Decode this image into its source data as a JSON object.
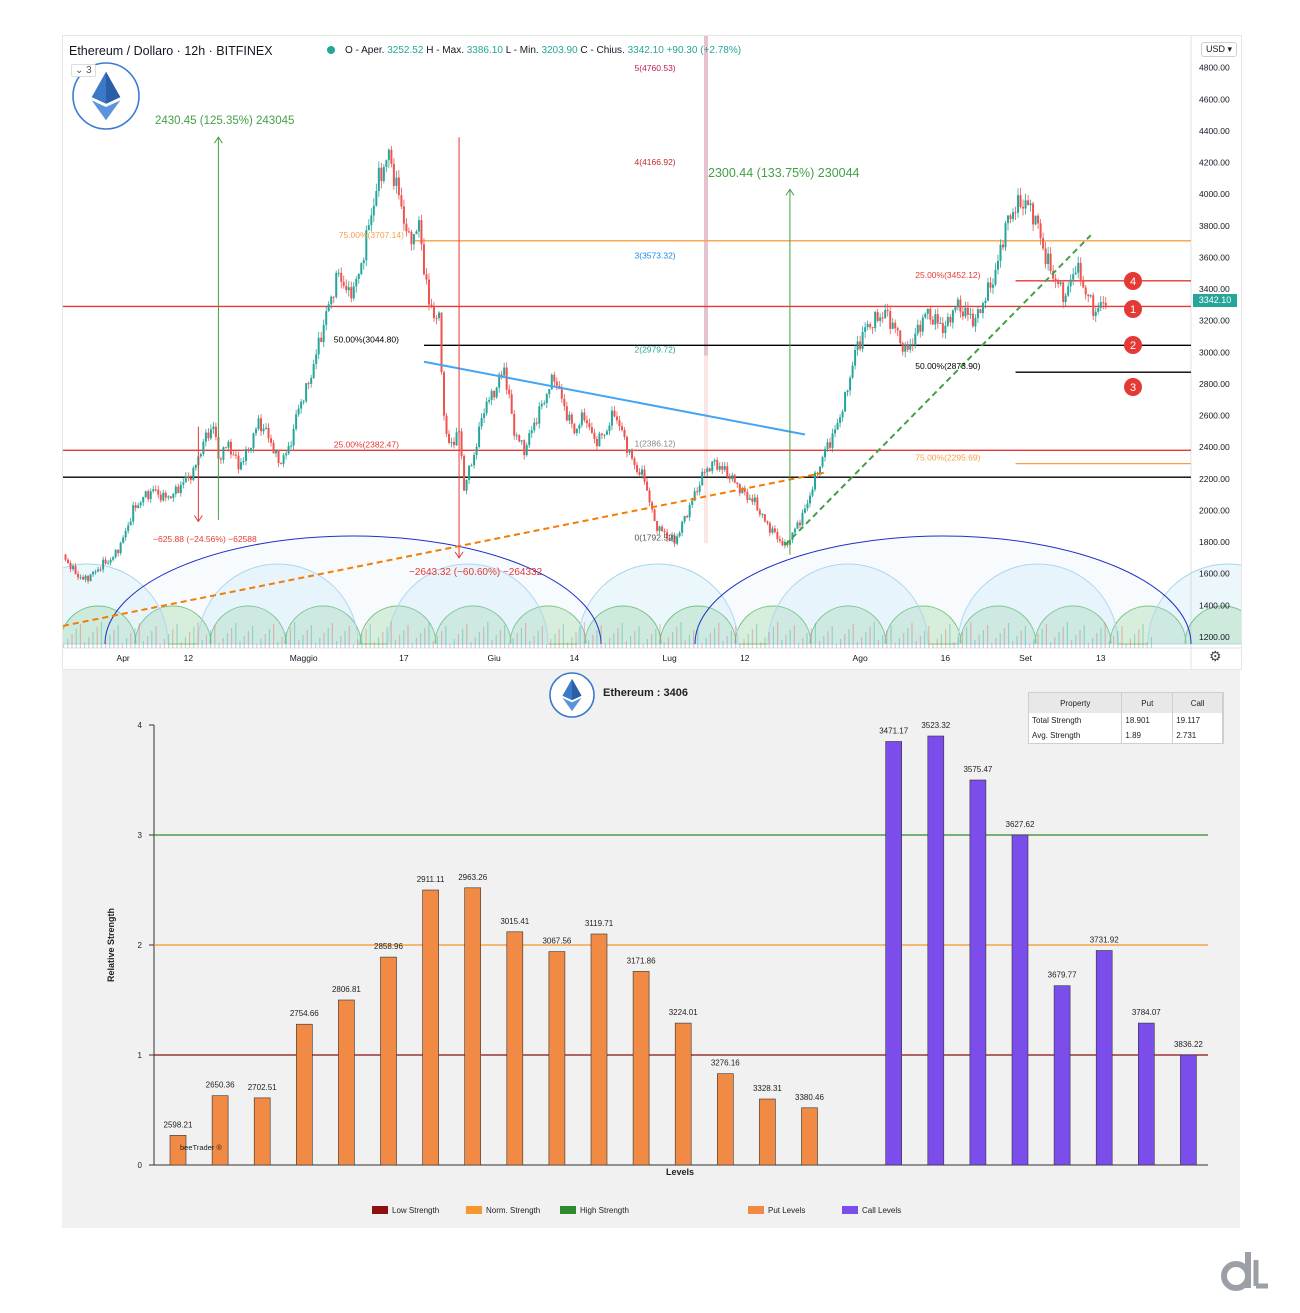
{
  "header": {
    "title": "Ethereum / Dollaro · 12h · BITFINEX",
    "ohlc_prefix": "O - Aper.",
    "open": "3252.52",
    "high_label": "H - Max.",
    "high": "3386.10",
    "low_label": "L - Min.",
    "low": "3203.90",
    "close_label": "C - Chius.",
    "close": "3342.10",
    "change": "+90.30 (+2.78%)",
    "currency_selector": "USD ▾",
    "collapse_indicator": "⌄ 3",
    "current_price_tag": "3342.10"
  },
  "chart_data": [
    {
      "type": "candlestick",
      "title": "Ethereum / Dollaro · 12h · BITFINEX",
      "y_axis_ticks": [
        1200,
        1400,
        1600,
        1800,
        2000,
        2200,
        2400,
        2600,
        2800,
        3000,
        3200,
        3400,
        3600,
        3800,
        4000,
        4200,
        4400,
        4600,
        4800
      ],
      "y_tick_labels": [
        "1200.00",
        "1400.00",
        "1600.00",
        "1800.00",
        "2000.00",
        "2200.00",
        "2400.00",
        "2600.00",
        "2800.00",
        "3000.00",
        "3200.00",
        "3400.00",
        "3600.00",
        "3800.00",
        "4000.00",
        "4200.00",
        "4400.00",
        "4600.00",
        "4800.00"
      ],
      "y_range": [
        1130,
        5000
      ],
      "x_range": [
        0,
        225
      ],
      "x_tick_labels": [
        {
          "label": "Apr",
          "x": 12
        },
        {
          "label": "12",
          "x": 25
        },
        {
          "label": "Maggio",
          "x": 48
        },
        {
          "label": "17",
          "x": 68
        },
        {
          "label": "Giu",
          "x": 86
        },
        {
          "label": "14",
          "x": 102
        },
        {
          "label": "Lug",
          "x": 121
        },
        {
          "label": "12",
          "x": 136
        },
        {
          "label": "Ago",
          "x": 159
        },
        {
          "label": "16",
          "x": 176
        },
        {
          "label": "Set",
          "x": 192
        },
        {
          "label": "13",
          "x": 207
        }
      ],
      "price_path": [
        [
          0,
          1720
        ],
        [
          2,
          1620
        ],
        [
          4,
          1560
        ],
        [
          6,
          1600
        ],
        [
          8,
          1660
        ],
        [
          10,
          1700
        ],
        [
          12,
          1820
        ],
        [
          14,
          2000
        ],
        [
          16,
          2080
        ],
        [
          18,
          2130
        ],
        [
          20,
          2080
        ],
        [
          22,
          2100
        ],
        [
          24,
          2180
        ],
        [
          26,
          2240
        ],
        [
          28,
          2430
        ],
        [
          30,
          2540
        ],
        [
          31,
          2330
        ],
        [
          33,
          2420
        ],
        [
          35,
          2280
        ],
        [
          37,
          2380
        ],
        [
          39,
          2560
        ],
        [
          41,
          2470
        ],
        [
          43,
          2300
        ],
        [
          45,
          2380
        ],
        [
          47,
          2650
        ],
        [
          49,
          2800
        ],
        [
          51,
          3050
        ],
        [
          53,
          3300
        ],
        [
          55,
          3500
        ],
        [
          57,
          3360
        ],
        [
          59,
          3480
        ],
        [
          61,
          3800
        ],
        [
          63,
          4100
        ],
        [
          65,
          4250
        ],
        [
          67,
          3990
        ],
        [
          69,
          3700
        ],
        [
          71,
          3800
        ],
        [
          73,
          3300
        ],
        [
          75,
          3200
        ],
        [
          76,
          2600
        ],
        [
          77,
          2400
        ],
        [
          79,
          2500
        ],
        [
          80,
          2150
        ],
        [
          82,
          2350
        ],
        [
          84,
          2650
        ],
        [
          86,
          2750
        ],
        [
          88,
          2900
        ],
        [
          90,
          2500
        ],
        [
          92,
          2380
        ],
        [
          94,
          2550
        ],
        [
          96,
          2700
        ],
        [
          98,
          2850
        ],
        [
          100,
          2650
        ],
        [
          102,
          2500
        ],
        [
          104,
          2600
        ],
        [
          106,
          2440
        ],
        [
          108,
          2480
        ],
        [
          110,
          2620
        ],
        [
          112,
          2450
        ],
        [
          114,
          2280
        ],
        [
          116,
          2200
        ],
        [
          118,
          1920
        ],
        [
          120,
          1850
        ],
        [
          122,
          1800
        ],
        [
          124,
          1950
        ],
        [
          126,
          2100
        ],
        [
          128,
          2250
        ],
        [
          130,
          2300
        ],
        [
          132,
          2250
        ],
        [
          134,
          2180
        ],
        [
          136,
          2100
        ],
        [
          138,
          2050
        ],
        [
          140,
          1930
        ],
        [
          142,
          1850
        ],
        [
          144,
          1770
        ],
        [
          146,
          1880
        ],
        [
          148,
          2000
        ],
        [
          150,
          2200
        ],
        [
          152,
          2380
        ],
        [
          154,
          2500
        ],
        [
          156,
          2700
        ],
        [
          158,
          3000
        ],
        [
          160,
          3150
        ],
        [
          162,
          3200
        ],
        [
          164,
          3250
        ],
        [
          166,
          3150
        ],
        [
          168,
          3000
        ],
        [
          170,
          3100
        ],
        [
          172,
          3250
        ],
        [
          174,
          3200
        ],
        [
          176,
          3150
        ],
        [
          178,
          3300
        ],
        [
          180,
          3250
        ],
        [
          182,
          3200
        ],
        [
          184,
          3350
        ],
        [
          186,
          3500
        ],
        [
          188,
          3800
        ],
        [
          190,
          3920
        ],
        [
          192,
          3950
        ],
        [
          194,
          3850
        ],
        [
          196,
          3600
        ],
        [
          198,
          3450
        ],
        [
          200,
          3350
        ],
        [
          202,
          3550
        ],
        [
          204,
          3380
        ],
        [
          206,
          3250
        ],
        [
          208,
          3342
        ]
      ]
    }
  ],
  "overlays": {
    "horizontal_lines": [
      {
        "price": 3290,
        "color": "#e53935",
        "x_from": 0,
        "x_to": 225
      },
      {
        "price": 2380,
        "color": "#e53935",
        "x_from": 0,
        "x_to": 225
      },
      {
        "price": 2210,
        "color": "#000000",
        "x_from": 0,
        "x_to": 225
      },
      {
        "price": 3044,
        "color": "#000000",
        "x_from": 72,
        "x_to": 225
      },
      {
        "price": 2874,
        "color": "#000000",
        "x_from": 190,
        "x_to": 225
      },
      {
        "price": 3452,
        "color": "#e53935",
        "x_from": 190,
        "x_to": 225
      },
      {
        "price": 3705,
        "color": "#f5a04a",
        "x_from": 70,
        "x_to": 225
      },
      {
        "price": 2296,
        "color": "#f5a04a",
        "x_from": 190,
        "x_to": 225
      }
    ],
    "level_labels": [
      {
        "text": "75.00%(3707.14)",
        "price": 3705,
        "x": 55,
        "color": "#f5a04a"
      },
      {
        "text": "50.00%(3044.80)",
        "price": 3044,
        "x": 54,
        "color": "#000000"
      },
      {
        "text": "25.00%(2382.47)",
        "price": 2380,
        "x": 54,
        "color": "#e53935"
      },
      {
        "text": "25.00%(3452.12)",
        "price": 3452,
        "x": 170,
        "color": "#e53935"
      },
      {
        "text": "50.00%(2873.90)",
        "price": 2874,
        "x": 170,
        "color": "#000000"
      },
      {
        "text": "75.00%(2295.69)",
        "price": 2296,
        "x": 170,
        "color": "#f5a04a"
      },
      {
        "text": "5(4760.53)",
        "price": 4760,
        "x": 114,
        "color": "#c2185b"
      },
      {
        "text": "4(4166.92)",
        "price": 4166,
        "x": 114,
        "color": "#c62828"
      },
      {
        "text": "3(3573.32)",
        "price": 3573,
        "x": 114,
        "color": "#1e88e5"
      },
      {
        "text": "2(2979.72)",
        "price": 2979,
        "x": 114,
        "color": "#26a69a"
      },
      {
        "text": "1(2386.12)",
        "price": 2386,
        "x": 114,
        "color": "#888888"
      },
      {
        "text": "0(1792.52)",
        "price": 1792,
        "x": 114,
        "color": "#555555"
      }
    ],
    "measure_texts": [
      {
        "text": "2430.45 (125.35%) 243045",
        "color": "#43a047"
      },
      {
        "text": "2300.44 (133.75%) 230044",
        "color": "#43a047"
      },
      {
        "text": "−625.88 (−24.56%) −62588",
        "color": "#e53935"
      },
      {
        "text": "−2643.32 (−60.60%) −264332",
        "color": "#e53935"
      }
    ],
    "badges": [
      "1",
      "2",
      "3",
      "4"
    ],
    "measure_arrows": [
      {
        "x": 31,
        "from": 1940,
        "to": 4360,
        "color": "#43a047"
      },
      {
        "x": 27,
        "from": 2530,
        "to": 1930,
        "color": "#e53935"
      },
      {
        "x": 79,
        "from": 4360,
        "to": 1700,
        "color": "#e53935"
      },
      {
        "x": 145,
        "from": 1720,
        "to": 4030,
        "color": "#43a047"
      }
    ],
    "trend_lines": [
      {
        "p1": [
          72,
          2940
        ],
        "p2": [
          148,
          2480
        ],
        "color": "#42a5f5",
        "dash": false
      },
      {
        "p1": [
          0,
          1270
        ],
        "p2": [
          152,
          2240
        ],
        "color": "#f57c00",
        "dash": true
      },
      {
        "p1": [
          144,
          1780
        ],
        "p2": [
          205,
          3740
        ],
        "color": "#43a047",
        "dash": true
      }
    ]
  },
  "bottom_chart": {
    "title": "Ethereum : 3406",
    "ylabel": "Relative Strength",
    "xlabel": "Levels",
    "watermark_text": "beeTrader ®",
    "table": {
      "headers": [
        "Property",
        "Put",
        "Call"
      ],
      "rows": [
        [
          "Total Strength",
          "18.901",
          "19.117"
        ],
        [
          "Avg. Strength",
          "1.89",
          "2.731"
        ]
      ]
    },
    "legend": [
      {
        "label": "Low Strength",
        "color": "#8b1010"
      },
      {
        "label": "Norm. Strength",
        "color": "#f5962e"
      },
      {
        "label": "High Strength",
        "color": "#2e8b2e"
      },
      {
        "label": "Put Levels",
        "color": "#f08a44"
      },
      {
        "label": "Call Levels",
        "color": "#7b4dea"
      }
    ]
  },
  "bar_chart_data": {
    "type": "bar",
    "title": "Ethereum : 3406",
    "xlabel": "Levels",
    "ylabel": "Relative Strength",
    "ylim": [
      0,
      4
    ],
    "y_ticks": [
      "0",
      "1",
      "2",
      "3",
      "4"
    ],
    "threshold_lines": [
      {
        "name": "Low Strength",
        "value": 1,
        "color": "#8b1010"
      },
      {
        "name": "Norm. Strength",
        "value": 2,
        "color": "#f5962e"
      },
      {
        "name": "High Strength",
        "value": 3,
        "color": "#2e8b2e"
      }
    ],
    "series": [
      {
        "name": "Put Levels",
        "color": "#f08a44",
        "categories": [
          "2598.21",
          "2650.36",
          "2702.51",
          "2754.66",
          "2806.81",
          "2858.96",
          "2911.11",
          "2963.26",
          "3015.41",
          "3067.56",
          "3119.71",
          "3171.86",
          "3224.01",
          "3276.16",
          "3328.31",
          "3380.46"
        ],
        "values": [
          0.27,
          0.63,
          0.61,
          1.28,
          1.5,
          1.89,
          2.5,
          2.52,
          2.12,
          1.94,
          2.1,
          1.76,
          1.29,
          0.83,
          0.6,
          0.52
        ]
      },
      {
        "name": "Call Levels",
        "color": "#7b4dea",
        "categories": [
          "3471.17",
          "3523.32",
          "3575.47",
          "3627.62",
          "3679.77",
          "3731.92",
          "3784.07",
          "3836.22"
        ],
        "values": [
          3.85,
          3.9,
          3.5,
          3.0,
          1.63,
          1.95,
          1.29,
          1.0
        ]
      }
    ]
  }
}
